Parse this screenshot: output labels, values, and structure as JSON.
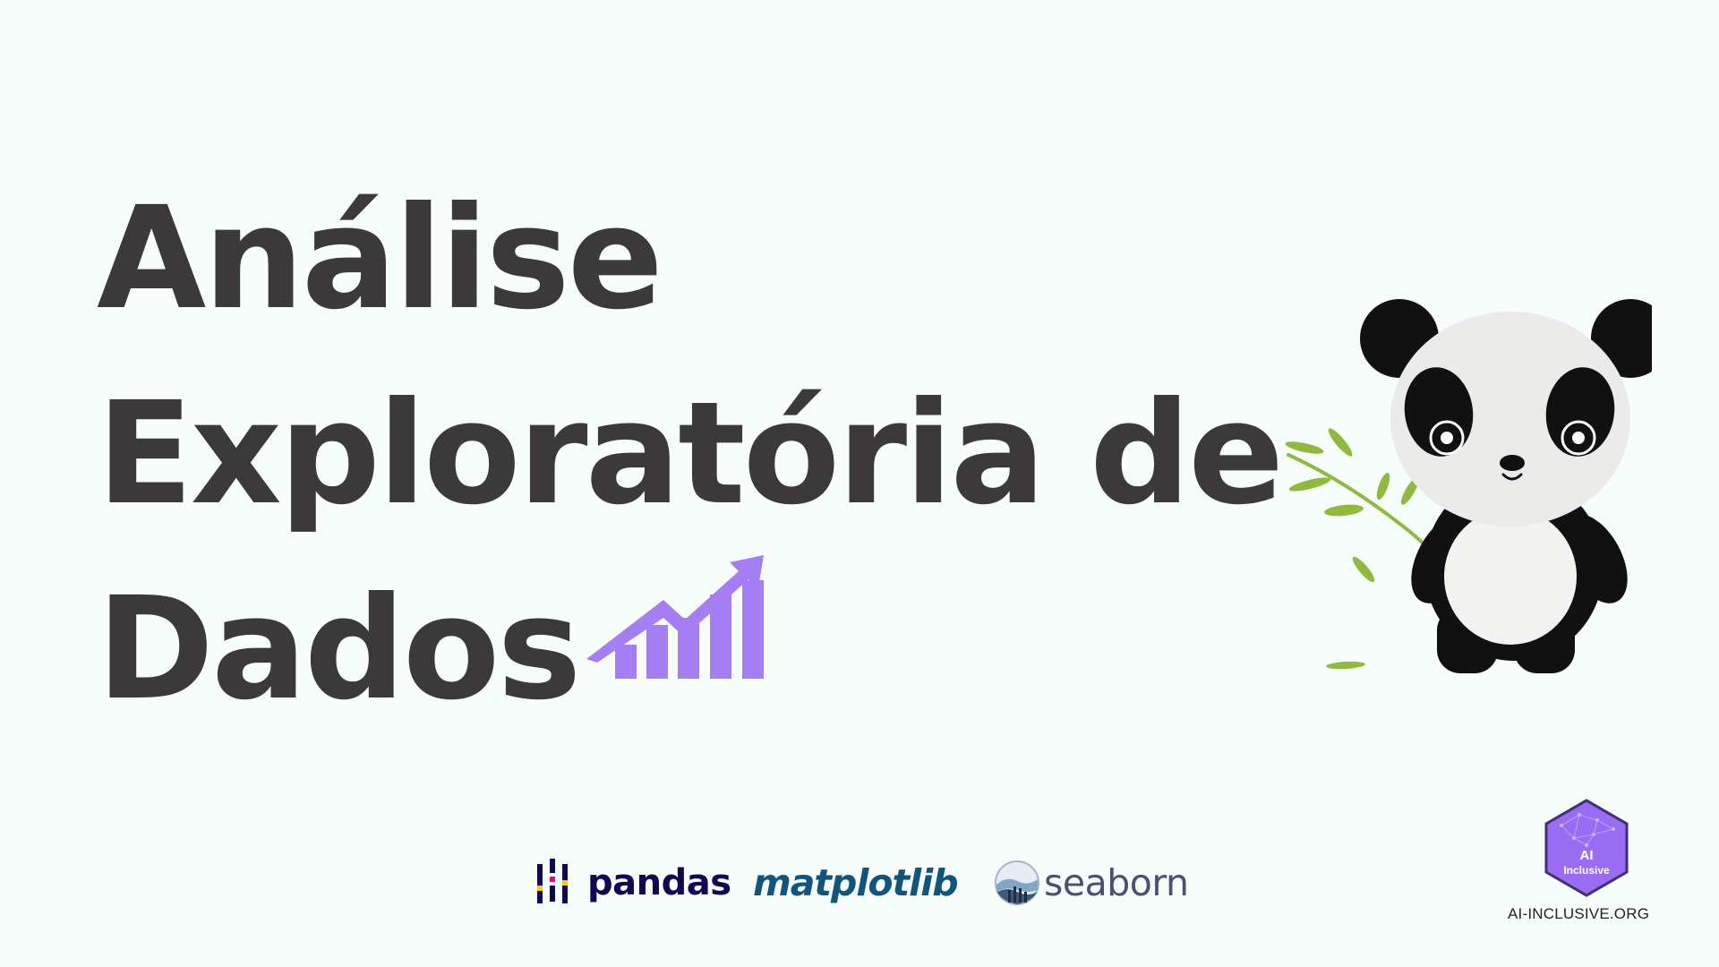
{
  "title": {
    "line1": "Análise",
    "line2": "Exploratória de",
    "line3": "Dados"
  },
  "title_icon": {
    "name": "growth-chart-icon",
    "color": "#a57ef4"
  },
  "illustration": {
    "name": "panda-with-bamboo"
  },
  "libraries": [
    {
      "name": "pandas",
      "label": "pandas",
      "color": "#130754"
    },
    {
      "name": "matplotlib",
      "label": "matplotlib",
      "color": "#11557c"
    },
    {
      "name": "seaborn",
      "label": "seaborn",
      "color": "#4c4f73"
    }
  ],
  "badge": {
    "line1": "AI",
    "line2": "Inclusive",
    "url": "AI-INCLUSIVE.ORG",
    "color": "#9a6cf2"
  },
  "colors": {
    "background": "#f6fdfb",
    "text": "#3b393a",
    "accent": "#a57ef4"
  }
}
